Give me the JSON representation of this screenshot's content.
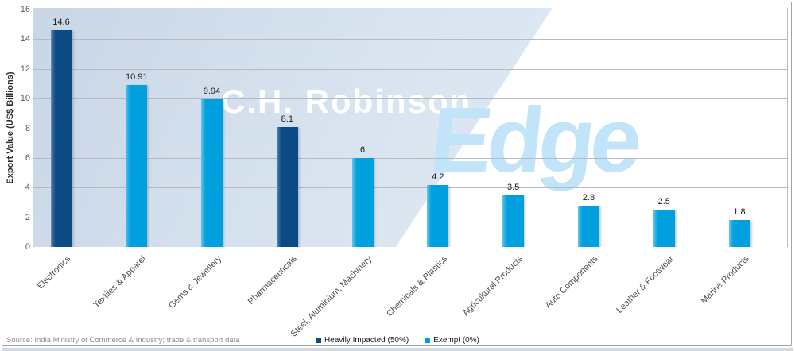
{
  "watermark": {
    "line1": "C.H. Robinson",
    "line2": "Edge"
  },
  "source_note": "Source: India Ministry of Commerce & Industry; trade & transport data",
  "colors": {
    "heavily_impacted": "#0b4a82",
    "exempt": "#00a0de",
    "watermark_robinson": "#ffffff",
    "watermark_edge": "#c1e4f8",
    "band_gradient_start": "#c9d6e6",
    "band_gradient_end": "#e7eff8",
    "gridline": "#b3bac2",
    "axis_text": "#595959"
  },
  "chart_data": {
    "type": "bar",
    "title": "",
    "xlabel": "",
    "ylabel": "Export Value (US$ Billions)",
    "ylim": [
      0,
      16
    ],
    "ytick_step": 2,
    "grid": "horizontal",
    "legend_position": "bottom-center",
    "categories": [
      "Electronics",
      "Textiles & Apparel",
      "Gems & Jewellery",
      "Pharmaceuticals",
      "Steel, Aluminium, Machinery",
      "Chemicals & Plastics",
      "Agricultural Products",
      "Auto Components",
      "Leather & Footwear",
      "Marine Products"
    ],
    "values": [
      14.6,
      10.91,
      9.94,
      8.1,
      6,
      4.2,
      3.5,
      2.8,
      2.5,
      1.8
    ],
    "value_labels": [
      "14.6",
      "10.91",
      "9.94",
      "8.1",
      "6",
      "4.2",
      "3.5",
      "2.8",
      "2.5",
      "1.8"
    ],
    "bar_series": [
      "heavily_impacted",
      "exempt",
      "exempt",
      "heavily_impacted",
      "exempt",
      "exempt",
      "exempt",
      "exempt",
      "exempt",
      "exempt"
    ],
    "legend": [
      {
        "key": "heavily_impacted",
        "label": "Heavily Impacted (50%)",
        "color": "#0b4a82"
      },
      {
        "key": "exempt",
        "label": "Exempt (0%)",
        "color": "#00a0de"
      }
    ]
  }
}
